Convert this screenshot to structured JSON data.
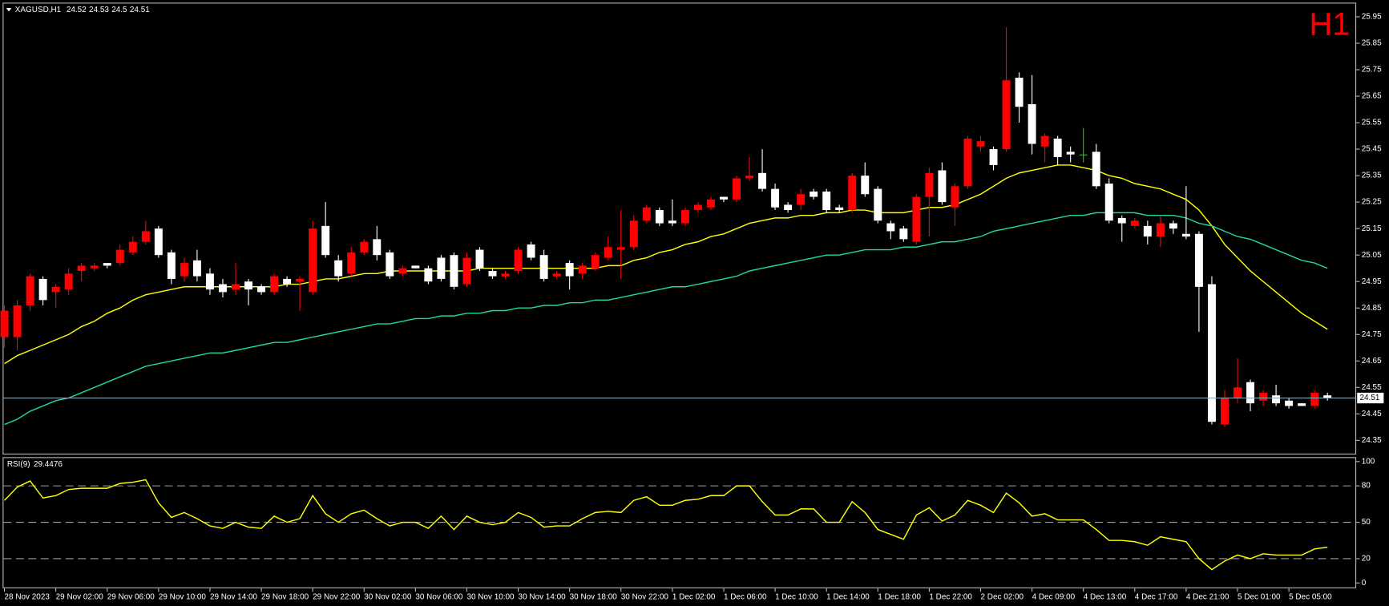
{
  "chart_data": {
    "type": "candlestick",
    "symbol": "XAGUSD,H1",
    "timeframe": "H1",
    "categories": [
      "28 Nov 2023",
      null,
      null,
      null,
      "29 Nov 02:00",
      null,
      null,
      null,
      "29 Nov 06:00",
      null,
      null,
      null,
      "29 Nov 10:00",
      null,
      null,
      null,
      "29 Nov 14:00",
      null,
      null,
      null,
      "29 Nov 18:00",
      null,
      null,
      null,
      "29 Nov 22:00",
      null,
      null,
      null,
      "30 Nov 02:00",
      null,
      null,
      null,
      "30 Nov 06:00",
      null,
      null,
      null,
      "30 Nov 10:00",
      null,
      null,
      null,
      "30 Nov 14:00",
      null,
      null,
      null,
      "30 Nov 18:00",
      null,
      null,
      null,
      "30 Nov 22:00",
      null,
      null,
      null,
      "1 Dec 02:00",
      null,
      null,
      null,
      "1 Dec 06:00",
      null,
      null,
      null,
      "1 Dec 10:00",
      null,
      null,
      null,
      "1 Dec 14:00",
      null,
      null,
      null,
      "1 Dec 18:00",
      null,
      null,
      null,
      "1 Dec 22:00",
      null,
      null,
      null,
      "2 Dec 02:00",
      null,
      null,
      null,
      "4 Dec 09:00",
      null,
      null,
      null,
      "4 Dec 13:00",
      null,
      null,
      null,
      "4 Dec 17:00",
      null,
      null,
      null,
      "4 Dec 21:00",
      null,
      null,
      null,
      "5 Dec 01:00",
      null,
      null,
      null,
      "5 Dec 05:00",
      null,
      null,
      null
    ],
    "open": [
      24.74,
      24.74,
      24.86,
      24.96,
      24.91,
      24.92,
      24.99,
      25.0,
      25.02,
      25.02,
      25.06,
      25.1,
      25.15,
      25.06,
      24.97,
      25.03,
      24.98,
      24.94,
      24.92,
      24.95,
      24.93,
      24.91,
      24.96,
      24.95,
      24.91,
      25.16,
      25.03,
      24.98,
      25.06,
      25.11,
      25.06,
      24.98,
      25.01,
      25.0,
      25.04,
      25.05,
      24.94,
      25.07,
      24.99,
      24.97,
      24.99,
      25.09,
      25.05,
      24.97,
      25.02,
      24.98,
      25.0,
      25.04,
      25.07,
      25.08,
      25.18,
      25.22,
      25.18,
      25.17,
      25.22,
      25.23,
      25.27,
      25.26,
      25.34,
      25.36,
      25.3,
      25.24,
      25.24,
      25.29,
      25.29,
      25.23,
      25.22,
      25.35,
      25.3,
      25.17,
      25.15,
      25.1,
      25.27,
      25.37,
      25.23,
      25.31,
      25.46,
      25.45,
      25.45,
      25.72,
      25.62,
      25.46,
      25.49,
      25.44,
      25.43,
      25.44,
      25.32,
      25.19,
      25.16,
      25.16,
      25.12,
      25.17,
      25.13,
      25.13,
      24.94,
      24.41,
      24.51,
      24.57,
      24.5,
      24.52,
      24.5,
      24.49,
      24.48,
      24.52
    ],
    "high": [
      24.86,
      24.88,
      24.98,
      24.97,
      24.94,
      25.0,
      25.02,
      25.02,
      25.02,
      25.09,
      25.12,
      25.18,
      25.16,
      25.07,
      25.04,
      25.07,
      25.0,
      24.96,
      25.02,
      24.96,
      24.94,
      24.98,
      24.97,
      24.97,
      25.18,
      25.25,
      25.05,
      25.08,
      25.11,
      25.16,
      25.07,
      25.01,
      25.01,
      25.01,
      25.05,
      25.06,
      25.06,
      25.08,
      25.0,
      24.99,
      25.08,
      25.1,
      25.07,
      24.99,
      25.03,
      25.02,
      25.06,
      25.12,
      25.22,
      25.2,
      25.24,
      25.23,
      25.26,
      25.23,
      25.25,
      25.27,
      25.27,
      25.35,
      25.42,
      25.45,
      25.32,
      25.25,
      25.3,
      25.3,
      25.3,
      25.24,
      25.36,
      25.4,
      25.31,
      25.18,
      25.16,
      25.28,
      25.38,
      25.4,
      25.32,
      25.5,
      25.5,
      25.46,
      25.91,
      25.74,
      25.73,
      25.51,
      25.5,
      25.46,
      25.53,
      25.47,
      25.34,
      25.2,
      25.19,
      25.18,
      25.2,
      25.18,
      25.31,
      25.14,
      24.97,
      24.54,
      24.66,
      24.58,
      24.54,
      24.56,
      24.51,
      24.49,
      24.54,
      24.53
    ],
    "low": [
      24.7,
      24.69,
      24.84,
      24.86,
      24.85,
      24.9,
      24.95,
      24.99,
      25.0,
      25.01,
      25.05,
      25.09,
      25.04,
      24.94,
      24.95,
      24.95,
      24.9,
      24.89,
      24.9,
      24.86,
      24.9,
      24.9,
      24.93,
      24.84,
      24.9,
      25.04,
      24.95,
      24.97,
      25.05,
      25.03,
      24.96,
      24.97,
      25.0,
      24.94,
      24.95,
      24.92,
      24.93,
      24.99,
      24.96,
      24.96,
      24.98,
      25.03,
      24.95,
      24.96,
      24.92,
      24.96,
      24.99,
      25.03,
      24.96,
      25.07,
      25.17,
      25.16,
      25.16,
      25.16,
      25.21,
      25.22,
      25.25,
      25.25,
      25.33,
      25.29,
      25.22,
      25.21,
      25.22,
      25.26,
      25.21,
      25.21,
      25.21,
      25.27,
      25.17,
      25.11,
      25.1,
      25.09,
      25.12,
      25.24,
      25.16,
      25.3,
      25.44,
      25.37,
      25.44,
      25.55,
      25.43,
      25.4,
      25.39,
      25.4,
      25.4,
      25.3,
      25.17,
      25.1,
      25.15,
      25.09,
      25.08,
      25.13,
      25.11,
      24.76,
      24.41,
      24.4,
      24.49,
      24.46,
      24.48,
      24.48,
      24.47,
      24.48,
      24.47,
      24.5
    ],
    "close": [
      24.84,
      24.86,
      24.97,
      24.88,
      24.93,
      24.98,
      25.01,
      25.01,
      25.01,
      25.07,
      25.1,
      25.14,
      25.05,
      24.96,
      25.02,
      24.97,
      24.92,
      24.91,
      24.94,
      24.92,
      24.91,
      24.97,
      24.94,
      24.96,
      25.15,
      25.05,
      24.97,
      25.06,
      25.1,
      25.05,
      24.97,
      25.0,
      25.0,
      24.95,
      24.96,
      24.93,
      25.04,
      25.0,
      24.97,
      24.98,
      25.07,
      25.04,
      24.96,
      24.98,
      24.97,
      25.01,
      25.05,
      25.08,
      25.08,
      25.18,
      25.23,
      25.17,
      25.17,
      25.22,
      25.24,
      25.26,
      25.26,
      25.34,
      25.35,
      25.3,
      25.23,
      25.22,
      25.28,
      25.27,
      25.22,
      25.22,
      25.35,
      25.28,
      25.18,
      25.14,
      25.11,
      25.27,
      25.36,
      25.25,
      25.31,
      25.49,
      25.48,
      25.39,
      25.71,
      25.61,
      25.47,
      25.5,
      25.42,
      25.43,
      25.43,
      25.31,
      25.18,
      25.17,
      25.18,
      25.12,
      25.17,
      25.15,
      25.12,
      24.93,
      24.42,
      24.51,
      24.55,
      24.49,
      24.53,
      24.49,
      24.48,
      24.48,
      24.53,
      24.51
    ],
    "bull_color": "#ff0000",
    "bear_color": "#ffffff",
    "doji_color": "#00e000",
    "ylim": [
      24.3,
      26.0
    ],
    "yticks": [
      24.35,
      24.45,
      24.55,
      24.65,
      24.75,
      24.85,
      24.95,
      25.05,
      25.15,
      25.25,
      25.35,
      25.45,
      25.55,
      25.65,
      25.75,
      25.85,
      25.95
    ],
    "price_line_color": "#8fa3b0",
    "moving_averages": [
      {
        "color": "#ffff00",
        "values": [
          24.64,
          24.67,
          24.69,
          24.71,
          24.73,
          24.75,
          24.78,
          24.8,
          24.83,
          24.85,
          24.88,
          24.9,
          24.91,
          24.92,
          24.93,
          24.93,
          24.93,
          24.93,
          24.93,
          24.93,
          24.93,
          24.93,
          24.94,
          24.94,
          24.95,
          24.96,
          24.96,
          24.97,
          24.98,
          24.98,
          24.99,
          24.99,
          24.99,
          24.99,
          24.99,
          24.99,
          24.99,
          25.0,
          25.0,
          25.0,
          25.0,
          25.0,
          25.0,
          25.0,
          25.0,
          25.0,
          25.0,
          25.01,
          25.01,
          25.03,
          25.04,
          25.06,
          25.07,
          25.09,
          25.1,
          25.12,
          25.13,
          25.15,
          25.17,
          25.18,
          25.19,
          25.19,
          25.2,
          25.2,
          25.21,
          25.21,
          25.22,
          25.22,
          25.21,
          25.21,
          25.21,
          25.22,
          25.23,
          25.23,
          25.24,
          25.26,
          25.28,
          25.31,
          25.34,
          25.36,
          25.37,
          25.38,
          25.39,
          25.39,
          25.38,
          25.37,
          25.35,
          25.34,
          25.32,
          25.31,
          25.3,
          25.28,
          25.26,
          25.22,
          25.16,
          25.09,
          25.04,
          24.99,
          24.95,
          24.91,
          24.87,
          24.83,
          24.8,
          24.77
        ]
      },
      {
        "color": "#20d6a8",
        "values": [
          24.41,
          24.43,
          24.46,
          24.48,
          24.5,
          24.51,
          24.53,
          24.55,
          24.57,
          24.59,
          24.61,
          24.63,
          24.64,
          24.65,
          24.66,
          24.67,
          24.68,
          24.68,
          24.69,
          24.7,
          24.71,
          24.72,
          24.72,
          24.73,
          24.74,
          24.75,
          24.76,
          24.77,
          24.78,
          24.79,
          24.79,
          24.8,
          24.81,
          24.81,
          24.82,
          24.82,
          24.83,
          24.83,
          24.84,
          24.84,
          24.85,
          24.85,
          24.86,
          24.86,
          24.87,
          24.87,
          24.88,
          24.88,
          24.89,
          24.9,
          24.91,
          24.92,
          24.93,
          24.93,
          24.94,
          24.95,
          24.96,
          24.97,
          24.99,
          25.0,
          25.01,
          25.02,
          25.03,
          25.04,
          25.05,
          25.05,
          25.06,
          25.07,
          25.07,
          25.07,
          25.08,
          25.08,
          25.09,
          25.1,
          25.1,
          25.11,
          25.12,
          25.14,
          25.15,
          25.16,
          25.17,
          25.18,
          25.19,
          25.2,
          25.2,
          25.21,
          25.21,
          25.21,
          25.21,
          25.2,
          25.2,
          25.2,
          25.19,
          25.17,
          25.16,
          25.14,
          25.12,
          25.11,
          25.09,
          25.07,
          25.05,
          25.03,
          25.02,
          25.0
        ]
      }
    ],
    "rsi": {
      "name": "RSI(9)",
      "color": "#ffff00",
      "ylim": [
        0,
        100
      ],
      "yticks": [
        0,
        20,
        50,
        80,
        100
      ],
      "values": [
        68,
        79,
        84,
        70,
        72,
        77,
        78,
        78,
        78,
        82,
        83,
        85,
        66,
        54,
        58,
        53,
        47,
        45,
        50,
        46,
        45,
        55,
        50,
        53,
        72,
        57,
        50,
        57,
        60,
        53,
        47,
        50,
        50,
        45,
        55,
        44,
        55,
        50,
        48,
        50,
        58,
        54,
        46,
        47,
        47,
        53,
        58,
        59,
        58,
        68,
        71,
        64,
        64,
        68,
        69,
        72,
        72,
        80,
        80,
        67,
        56,
        56,
        61,
        61,
        50,
        50,
        67,
        58,
        44,
        40,
        36,
        56,
        62,
        51,
        56,
        68,
        64,
        58,
        74,
        66,
        55,
        57,
        52,
        52,
        52,
        44,
        35,
        35,
        34,
        31,
        38,
        36,
        34,
        20,
        11,
        18,
        23,
        20,
        24,
        23,
        23,
        23,
        28,
        29.4476
      ]
    }
  }
}
